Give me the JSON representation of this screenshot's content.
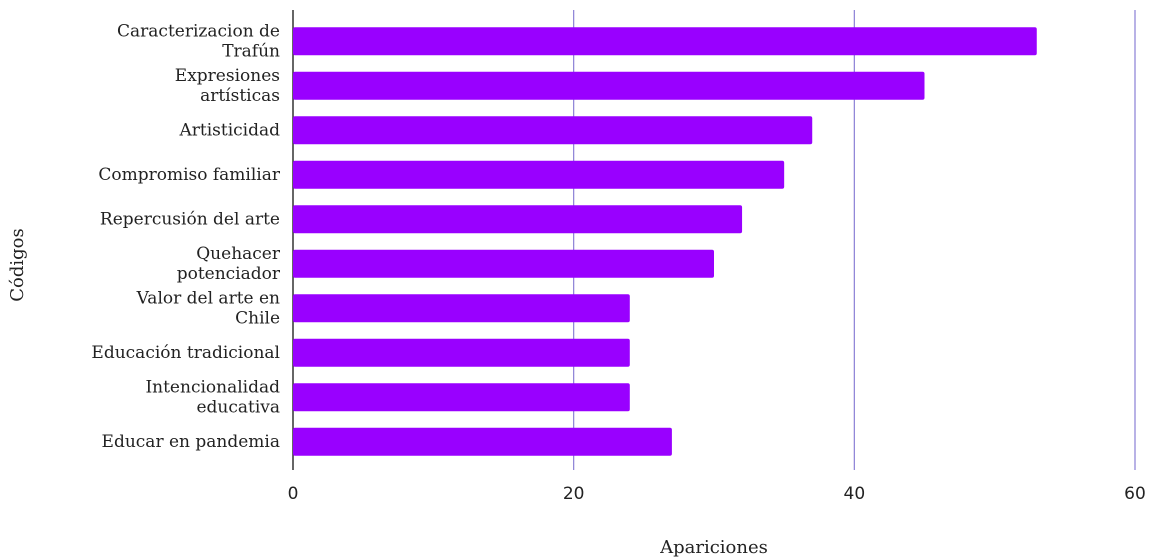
{
  "chart_data": {
    "type": "bar",
    "orientation": "horizontal",
    "categories": [
      "Caracterizacion de Trafún",
      "Expresiones artísticas",
      "Artisticidad",
      "Compromiso familiar",
      "Repercusión del arte",
      "Quehacer potenciador",
      "Valor del arte en Chile",
      "Educación tradicional",
      "Intencionalidad educativa",
      "Educar en pandemia"
    ],
    "values": [
      53,
      45,
      37,
      35,
      32,
      30,
      24,
      24,
      24,
      27
    ],
    "color": "#9900ff",
    "x_label": "Apariciones",
    "y_label": "Códigos",
    "xlim": [
      0,
      60
    ],
    "xticks": [
      0,
      20,
      40,
      60
    ],
    "grid": true,
    "grid_color": "#8a7fd6"
  }
}
